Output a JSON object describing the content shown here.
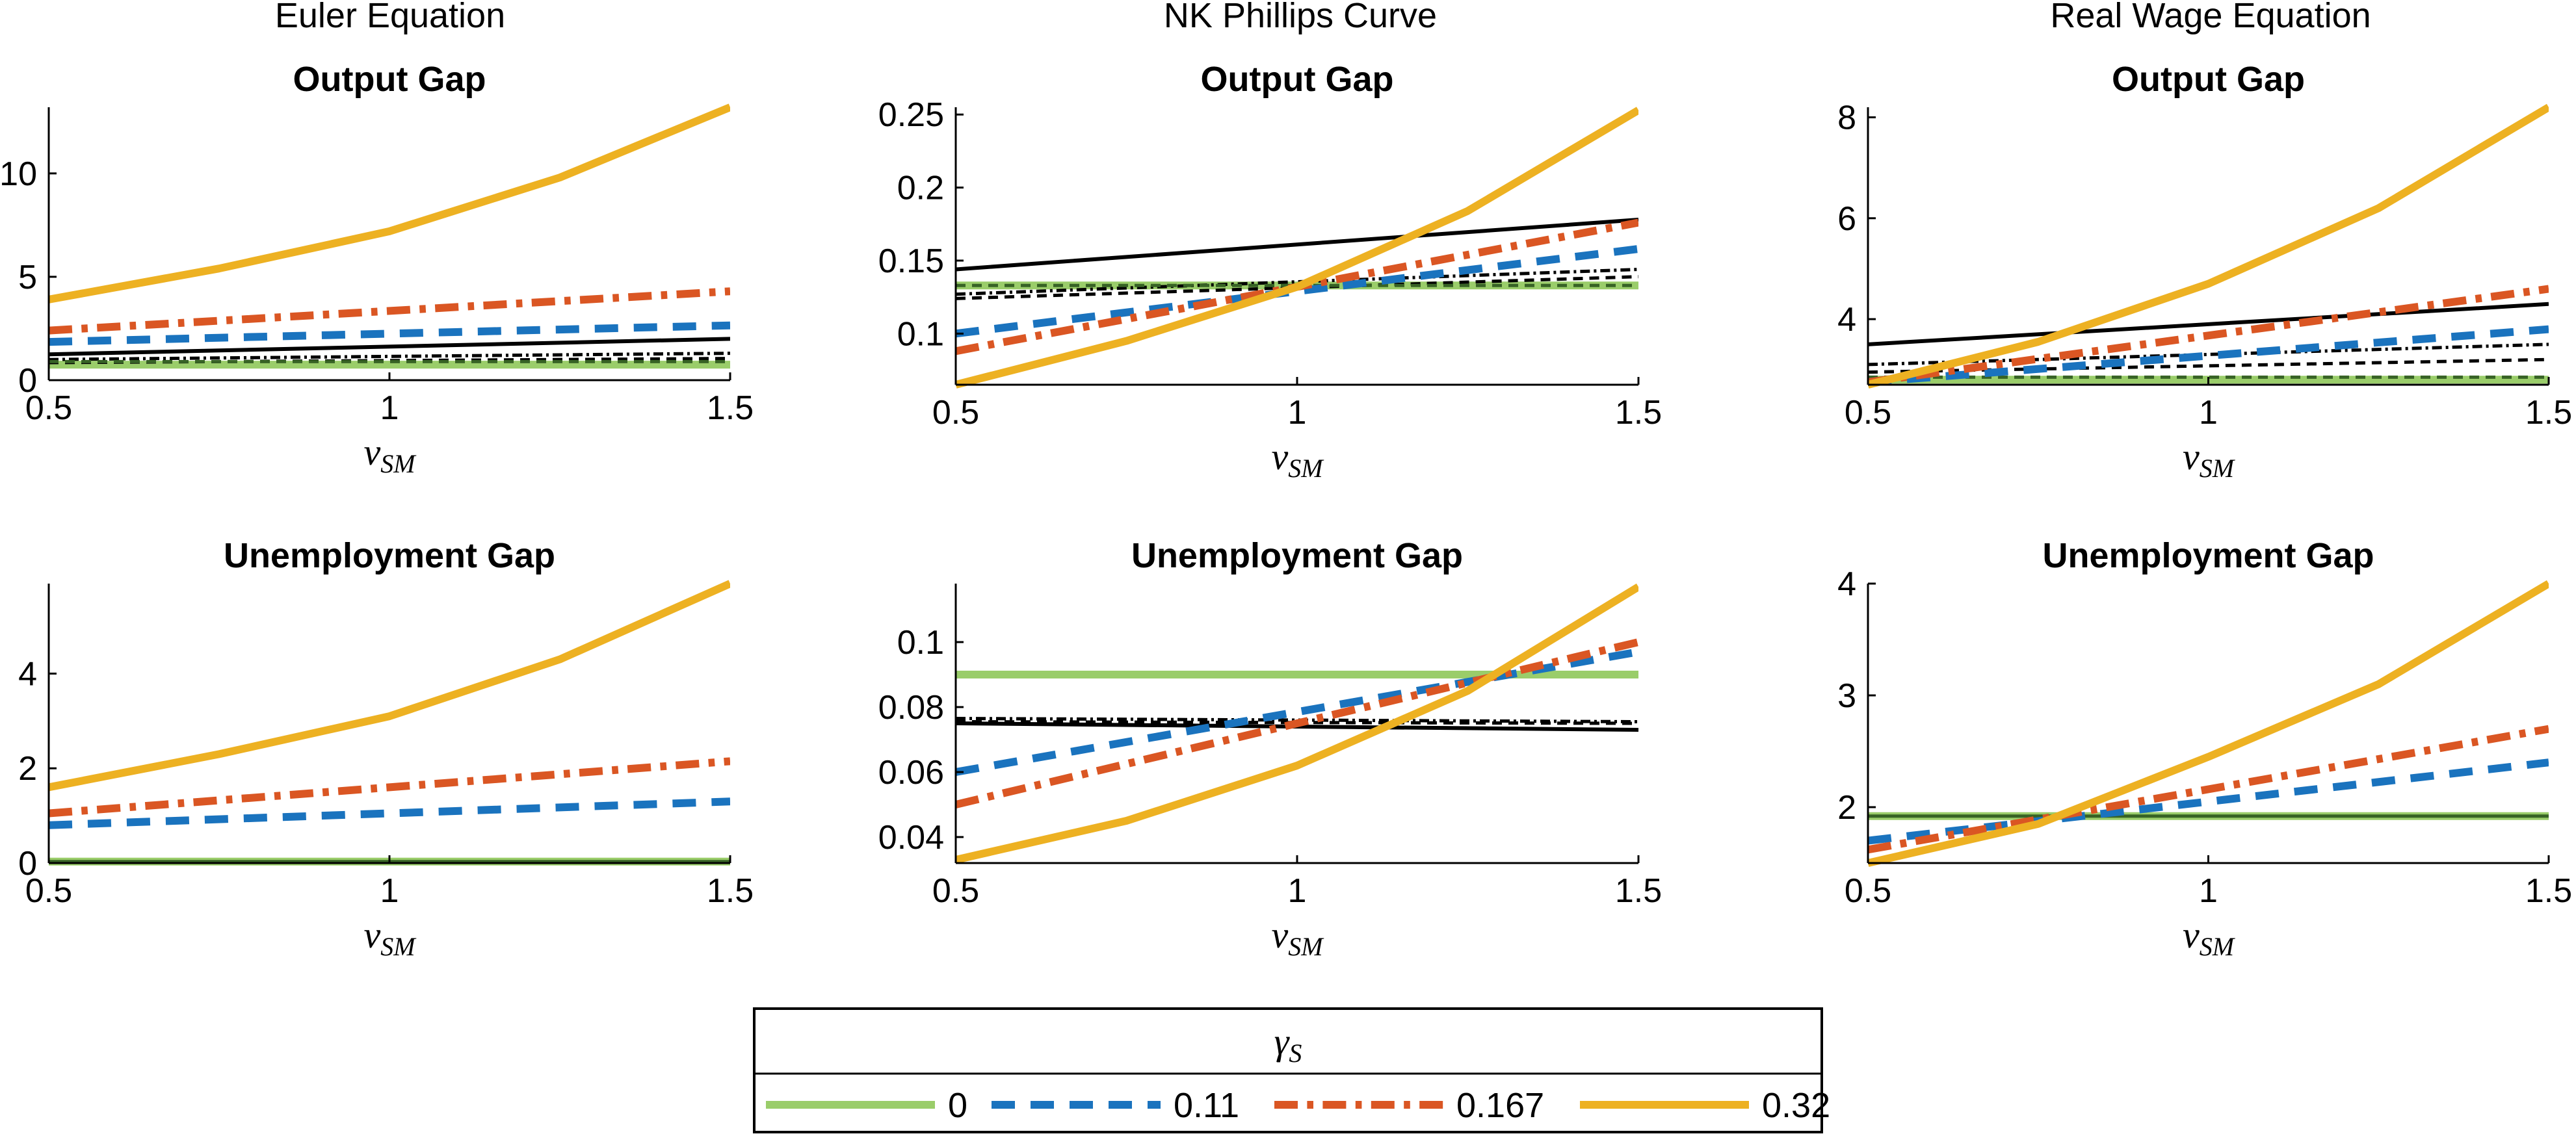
{
  "column_titles": [
    "Euler Equation",
    "NK Phillips Curve",
    "Real Wage Equation"
  ],
  "xlabel_main": "ν",
  "xlabel_sub": "SM",
  "legend": {
    "title_main": "γ",
    "title_sub": "S",
    "entries": [
      {
        "label": "0",
        "color": "#9ACD6A",
        "style": "solid"
      },
      {
        "label": "0.11",
        "color": "#1A73BE",
        "style": "dashed"
      },
      {
        "label": "0.167",
        "color": "#DA5623",
        "style": "dashdot"
      },
      {
        "label": "0.32",
        "color": "#EDB122",
        "style": "solid"
      }
    ]
  },
  "chart_data": [
    {
      "type": "line",
      "column": "Euler Equation",
      "title": "Output Gap",
      "xlim": [
        0.5,
        1.5
      ],
      "ylim": [
        0,
        13.2
      ],
      "xticks": [
        "0.5",
        "1",
        "1.5"
      ],
      "yticks": [
        0,
        5,
        10
      ],
      "ytick_labels": [
        "0",
        "5",
        "10"
      ],
      "series": [
        {
          "name": "0",
          "color": "#9ACD6A",
          "style": "solid",
          "width": 12,
          "x": [
            0.5,
            1.5
          ],
          "y": [
            0.75,
            0.75
          ]
        },
        {
          "color": "#000000",
          "style": "solid",
          "width": 6,
          "x": [
            0.5,
            1.5
          ],
          "y": [
            1.25,
            2.0
          ]
        },
        {
          "color": "#000000",
          "style": "dashdot",
          "width": 5,
          "x": [
            0.5,
            1.5
          ],
          "y": [
            1.0,
            1.3
          ]
        },
        {
          "color": "#000000",
          "style": "dashed",
          "width": 5,
          "x": [
            0.5,
            1.5
          ],
          "y": [
            0.85,
            1.05
          ]
        },
        {
          "color": "#376325",
          "style": "dashed",
          "width": 5,
          "x": [
            0.5,
            1.5
          ],
          "y": [
            0.9,
            0.9
          ]
        },
        {
          "name": "0.11",
          "color": "#1A73BE",
          "style": "dashed",
          "width": 12,
          "x": [
            0.5,
            1.5
          ],
          "y": [
            1.85,
            2.65
          ]
        },
        {
          "name": "0.167",
          "color": "#DA5623",
          "style": "dashdot",
          "width": 12,
          "x": [
            0.5,
            1.5
          ],
          "y": [
            2.4,
            4.3
          ]
        },
        {
          "name": "0.32",
          "color": "#EDB122",
          "style": "solid",
          "width": 12,
          "x": [
            0.5,
            0.75,
            1.0,
            1.25,
            1.5
          ],
          "y": [
            3.9,
            5.4,
            7.2,
            9.8,
            13.2
          ]
        }
      ]
    },
    {
      "type": "line",
      "column": "NK Phillips Curve",
      "title": "Output Gap",
      "xlim": [
        0.5,
        1.5
      ],
      "ylim": [
        0.065,
        0.255
      ],
      "xticks": [
        "0.5",
        "1",
        "1.5"
      ],
      "yticks": [
        0.1,
        0.15,
        0.2,
        0.25
      ],
      "ytick_labels": [
        "0.1",
        "0.15",
        "0.2",
        "0.25"
      ],
      "series": [
        {
          "name": "0",
          "color": "#9ACD6A",
          "style": "solid",
          "width": 12,
          "x": [
            0.5,
            1.5
          ],
          "y": [
            0.133,
            0.133
          ]
        },
        {
          "color": "#000000",
          "style": "solid",
          "width": 6,
          "x": [
            0.5,
            1.5
          ],
          "y": [
            0.144,
            0.178
          ]
        },
        {
          "color": "#000000",
          "style": "dashdot",
          "width": 5,
          "x": [
            0.5,
            1.5
          ],
          "y": [
            0.127,
            0.144
          ]
        },
        {
          "color": "#000000",
          "style": "dashed",
          "width": 5,
          "x": [
            0.5,
            1.5
          ],
          "y": [
            0.124,
            0.139
          ]
        },
        {
          "color": "#376325",
          "style": "dashed",
          "width": 5,
          "x": [
            0.5,
            1.5
          ],
          "y": [
            0.133,
            0.133
          ]
        },
        {
          "name": "0.11",
          "color": "#1A73BE",
          "style": "dashed",
          "width": 12,
          "x": [
            0.5,
            1.5
          ],
          "y": [
            0.1,
            0.158
          ]
        },
        {
          "name": "0.167",
          "color": "#DA5623",
          "style": "dashdot",
          "width": 12,
          "x": [
            0.5,
            1.5
          ],
          "y": [
            0.088,
            0.176
          ]
        },
        {
          "name": "0.32",
          "color": "#EDB122",
          "style": "solid",
          "width": 12,
          "x": [
            0.5,
            0.75,
            1.0,
            1.25,
            1.5
          ],
          "y": [
            0.065,
            0.095,
            0.132,
            0.184,
            0.253
          ]
        }
      ]
    },
    {
      "type": "line",
      "column": "Real Wage Equation",
      "title": "Output Gap",
      "xlim": [
        0.5,
        1.5
      ],
      "ylim": [
        2.7,
        8.2
      ],
      "xticks": [
        "0.5",
        "1",
        "1.5"
      ],
      "yticks": [
        4,
        6,
        8
      ],
      "ytick_labels": [
        "4",
        "6",
        "8"
      ],
      "series": [
        {
          "name": "0",
          "color": "#9ACD6A",
          "style": "solid",
          "width": 12,
          "x": [
            0.5,
            1.5
          ],
          "y": [
            2.8,
            2.8
          ]
        },
        {
          "color": "#000000",
          "style": "solid",
          "width": 6,
          "x": [
            0.5,
            1.5
          ],
          "y": [
            3.5,
            4.3
          ]
        },
        {
          "color": "#000000",
          "style": "dashdot",
          "width": 5,
          "x": [
            0.5,
            1.5
          ],
          "y": [
            3.1,
            3.5
          ]
        },
        {
          "color": "#000000",
          "style": "dashed",
          "width": 5,
          "x": [
            0.5,
            1.5
          ],
          "y": [
            2.95,
            3.2
          ]
        },
        {
          "color": "#376325",
          "style": "dashed",
          "width": 5,
          "x": [
            0.5,
            1.5
          ],
          "y": [
            2.85,
            2.85
          ]
        },
        {
          "name": "0.11",
          "color": "#1A73BE",
          "style": "dashed",
          "width": 12,
          "x": [
            0.5,
            1.5
          ],
          "y": [
            2.75,
            3.8
          ]
        },
        {
          "name": "0.167",
          "color": "#DA5623",
          "style": "dashdot",
          "width": 12,
          "x": [
            0.5,
            1.5
          ],
          "y": [
            2.75,
            4.6
          ]
        },
        {
          "name": "0.32",
          "color": "#EDB122",
          "style": "solid",
          "width": 12,
          "x": [
            0.5,
            0.75,
            1.0,
            1.25,
            1.5
          ],
          "y": [
            2.7,
            3.55,
            4.7,
            6.2,
            8.2
          ]
        }
      ]
    },
    {
      "type": "line",
      "column": "Euler Equation",
      "title": "Unemployment Gap",
      "xlim": [
        0.5,
        1.5
      ],
      "ylim": [
        0,
        5.9
      ],
      "xticks": [
        "0.5",
        "1",
        "1.5"
      ],
      "yticks": [
        0,
        2,
        4
      ],
      "ytick_labels": [
        "0",
        "2",
        "4"
      ],
      "series": [
        {
          "name": "0",
          "color": "#9ACD6A",
          "style": "solid",
          "width": 12,
          "x": [
            0.5,
            1.5
          ],
          "y": [
            0.03,
            0.03
          ]
        },
        {
          "color": "#376325",
          "style": "solid",
          "width": 5,
          "x": [
            0.5,
            1.5
          ],
          "y": [
            0.03,
            0.03
          ]
        },
        {
          "name": "0.11",
          "color": "#1A73BE",
          "style": "dashed",
          "width": 12,
          "x": [
            0.5,
            1.5
          ],
          "y": [
            0.8,
            1.3
          ]
        },
        {
          "name": "0.167",
          "color": "#DA5623",
          "style": "dashdot",
          "width": 12,
          "x": [
            0.5,
            1.5
          ],
          "y": [
            1.05,
            2.15
          ]
        },
        {
          "name": "0.32",
          "color": "#EDB122",
          "style": "solid",
          "width": 12,
          "x": [
            0.5,
            0.75,
            1.0,
            1.25,
            1.5
          ],
          "y": [
            1.6,
            2.3,
            3.1,
            4.3,
            5.9
          ]
        }
      ]
    },
    {
      "type": "line",
      "column": "NK Phillips Curve",
      "title": "Unemployment Gap",
      "xlim": [
        0.5,
        1.5
      ],
      "ylim": [
        0.032,
        0.118
      ],
      "xticks": [
        "0.5",
        "1",
        "1.5"
      ],
      "yticks": [
        0.04,
        0.06,
        0.08,
        0.1
      ],
      "ytick_labels": [
        "0.04",
        "0.06",
        "0.08",
        "0.1"
      ],
      "series": [
        {
          "name": "0",
          "color": "#9ACD6A",
          "style": "solid",
          "width": 12,
          "x": [
            0.5,
            1.5
          ],
          "y": [
            0.09,
            0.09
          ]
        },
        {
          "color": "#000000",
          "style": "solid",
          "width": 6,
          "x": [
            0.5,
            1.5
          ],
          "y": [
            0.075,
            0.073
          ]
        },
        {
          "color": "#000000",
          "style": "dashdot",
          "width": 5,
          "x": [
            0.5,
            1.5
          ],
          "y": [
            0.0765,
            0.0755
          ]
        },
        {
          "color": "#000000",
          "style": "dashed",
          "width": 5,
          "x": [
            0.5,
            1.5
          ],
          "y": [
            0.0755,
            0.075
          ]
        },
        {
          "name": "0.11",
          "color": "#1A73BE",
          "style": "dashed",
          "width": 12,
          "x": [
            0.5,
            1.5
          ],
          "y": [
            0.06,
            0.097
          ]
        },
        {
          "name": "0.167",
          "color": "#DA5623",
          "style": "dashdot",
          "width": 12,
          "x": [
            0.5,
            1.5
          ],
          "y": [
            0.05,
            0.1
          ]
        },
        {
          "name": "0.32",
          "color": "#EDB122",
          "style": "solid",
          "width": 12,
          "x": [
            0.5,
            0.75,
            1.0,
            1.25,
            1.5
          ],
          "y": [
            0.033,
            0.045,
            0.062,
            0.085,
            0.117
          ]
        }
      ]
    },
    {
      "type": "line",
      "column": "Real Wage Equation",
      "title": "Unemployment Gap",
      "xlim": [
        0.5,
        1.5
      ],
      "ylim": [
        1.5,
        4.0
      ],
      "xticks": [
        "0.5",
        "1",
        "1.5"
      ],
      "yticks": [
        2,
        3,
        4
      ],
      "ytick_labels": [
        "2",
        "3",
        "4"
      ],
      "series": [
        {
          "name": "0",
          "color": "#9ACD6A",
          "style": "solid",
          "width": 12,
          "x": [
            0.5,
            1.5
          ],
          "y": [
            1.92,
            1.92
          ]
        },
        {
          "color": "#376325",
          "style": "solid",
          "width": 5,
          "x": [
            0.5,
            1.5
          ],
          "y": [
            1.92,
            1.92
          ]
        },
        {
          "name": "0.11",
          "color": "#1A73BE",
          "style": "dashed",
          "width": 12,
          "x": [
            0.5,
            1.5
          ],
          "y": [
            1.7,
            2.4
          ]
        },
        {
          "name": "0.167",
          "color": "#DA5623",
          "style": "dashdot",
          "width": 12,
          "x": [
            0.5,
            1.5
          ],
          "y": [
            1.62,
            2.7
          ]
        },
        {
          "name": "0.32",
          "color": "#EDB122",
          "style": "solid",
          "width": 12,
          "x": [
            0.5,
            0.75,
            1.0,
            1.25,
            1.5
          ],
          "y": [
            1.5,
            1.85,
            2.45,
            3.1,
            4.0
          ]
        }
      ]
    }
  ]
}
